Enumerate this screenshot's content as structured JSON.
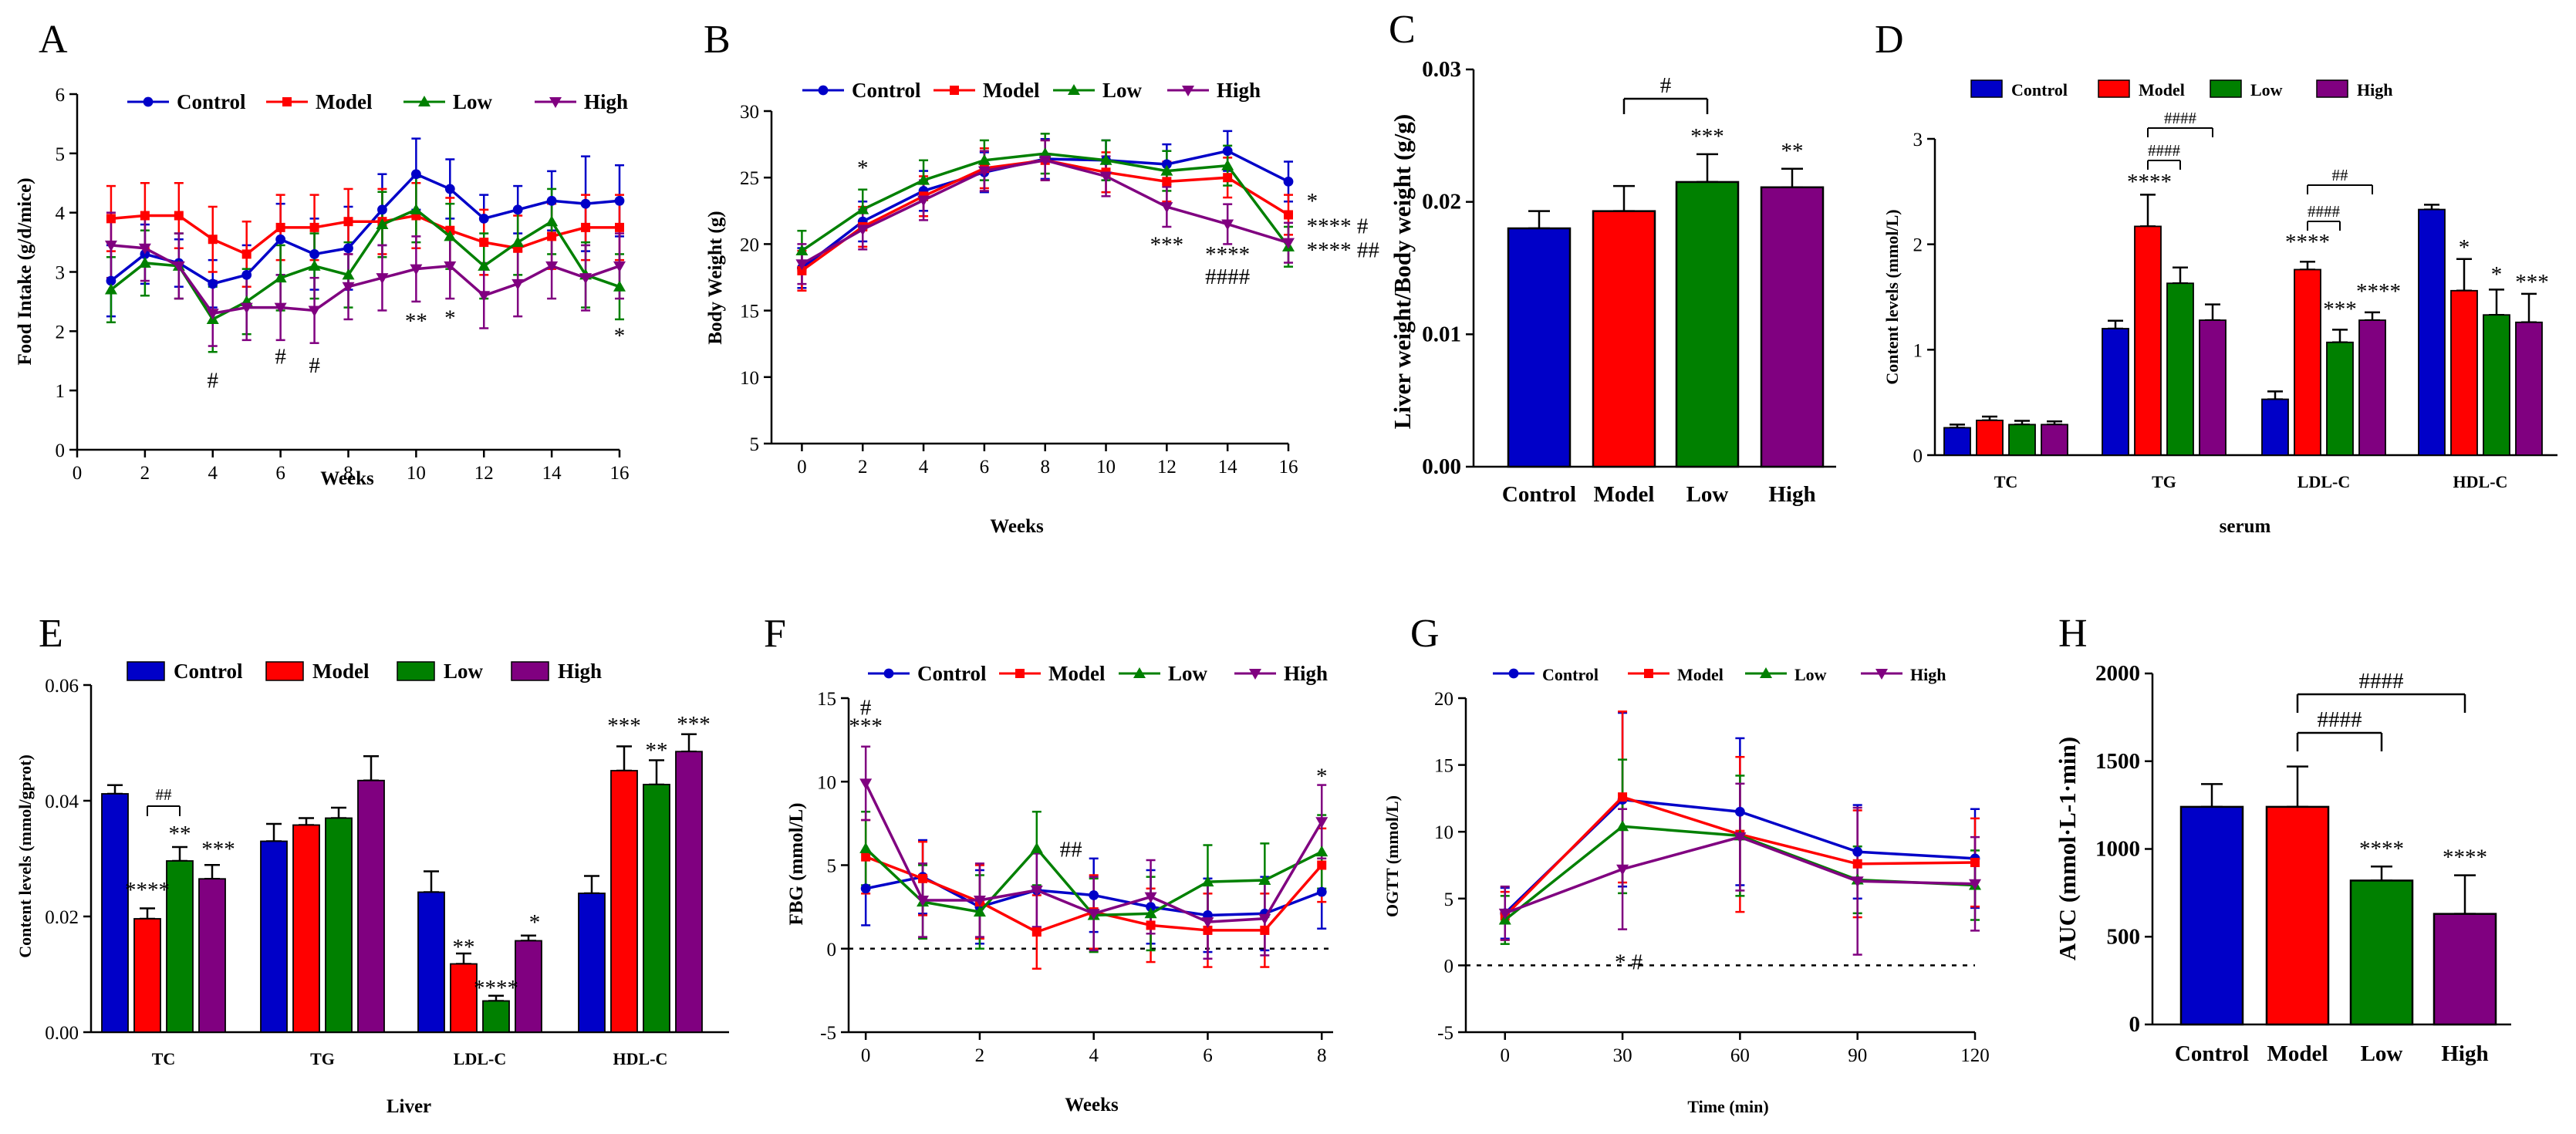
{
  "figure": {
    "labels": [
      "A",
      "B",
      "C",
      "D",
      "E",
      "F",
      "G",
      "H"
    ]
  },
  "colors": {
    "Control": "#0000c8",
    "Model": "#ff0000",
    "Low": "#008000",
    "High": "#800080"
  },
  "chart_data": [
    {
      "id": "A",
      "type": "line",
      "xlabel": "Weeks",
      "ylabel": "Food Intake (g/d/mice)",
      "xlim": [
        0,
        16
      ],
      "ylim": [
        0,
        6
      ],
      "xticks": [
        0,
        2,
        4,
        6,
        8,
        10,
        12,
        14,
        16
      ],
      "yticks": [
        0,
        1,
        2,
        3,
        4,
        5,
        6
      ],
      "legend": [
        "Control",
        "Model",
        "Low",
        "High"
      ],
      "x": [
        1,
        2,
        3,
        4,
        5,
        6,
        7,
        8,
        9,
        10,
        11,
        12,
        13,
        14,
        15,
        16
      ],
      "series": [
        {
          "name": "Control",
          "values": [
            2.85,
            3.3,
            3.15,
            2.8,
            2.95,
            3.55,
            3.3,
            3.4,
            4.05,
            4.65,
            4.4,
            3.9,
            4.05,
            4.2,
            4.15,
            4.2
          ],
          "err": [
            0.6,
            0.5,
            0.4,
            0.4,
            0.5,
            0.6,
            0.6,
            0.7,
            0.6,
            0.6,
            0.5,
            0.4,
            0.4,
            0.5,
            0.8,
            0.6
          ]
        },
        {
          "name": "Model",
          "values": [
            3.9,
            3.95,
            3.95,
            3.55,
            3.3,
            3.75,
            3.75,
            3.85,
            3.85,
            3.95,
            3.7,
            3.5,
            3.4,
            3.6,
            3.75,
            3.75
          ]
        },
        {
          "name": "Low",
          "values": [
            2.7,
            3.15,
            3.1,
            2.2,
            2.5,
            2.9,
            3.1,
            2.95,
            3.8,
            4.05,
            3.6,
            3.1,
            3.5,
            3.85,
            2.95,
            2.75
          ]
        },
        {
          "name": "High",
          "values": [
            3.45,
            3.4,
            3.1,
            2.3,
            2.4,
            2.4,
            2.35,
            2.75,
            2.9,
            3.05,
            3.1,
            2.6,
            2.8,
            3.1,
            2.9,
            3.1
          ]
        }
      ],
      "annotations": [
        {
          "x": 4,
          "y": 1.05,
          "text": "#"
        },
        {
          "x": 6,
          "y": 1.45,
          "text": "#"
        },
        {
          "x": 7,
          "y": 1.3,
          "text": "#"
        },
        {
          "x": 10,
          "y": 2.05,
          "text": "**"
        },
        {
          "x": 11,
          "y": 2.1,
          "text": "*"
        },
        {
          "x": 16,
          "y": 1.8,
          "text": "*"
        }
      ]
    },
    {
      "id": "B",
      "type": "line",
      "xlabel": "Weeks",
      "ylabel": "Body Weight (g)",
      "xlim": [
        -1,
        16
      ],
      "ylim": [
        5,
        30
      ],
      "xticks": [
        0,
        2,
        4,
        6,
        8,
        10,
        12,
        14,
        16
      ],
      "yticks": [
        5,
        10,
        15,
        20,
        25,
        30
      ],
      "legend": [
        "Control",
        "Model",
        "Low",
        "High"
      ],
      "x": [
        0,
        2,
        4,
        6,
        8,
        10,
        12,
        14,
        16
      ],
      "series": [
        {
          "name": "Control",
          "values": [
            18.2,
            21.7,
            24.0,
            25.4,
            26.4,
            26.3,
            26.0,
            27.0,
            24.7
          ]
        },
        {
          "name": "Model",
          "values": [
            18.0,
            21.3,
            23.6,
            25.7,
            26.3,
            25.4,
            24.7,
            25.0,
            22.2
          ]
        },
        {
          "name": "Low",
          "values": [
            19.5,
            22.6,
            24.8,
            26.3,
            26.8,
            26.3,
            25.5,
            25.9,
            19.8
          ]
        },
        {
          "name": "High",
          "values": [
            18.5,
            21.1,
            23.3,
            25.5,
            26.3,
            25.1,
            22.8,
            21.5,
            20.1
          ]
        }
      ],
      "annotations": [
        {
          "x": 2,
          "y": 25.2,
          "text": "*"
        },
        {
          "x": 16.6,
          "y": 22.7,
          "text": "*"
        },
        {
          "x": 16.6,
          "y": 20.8,
          "text": "**** #"
        },
        {
          "x": 16.6,
          "y": 19.0,
          "text": "**** ##"
        },
        {
          "x": 12,
          "y": 19.4,
          "text": "***"
        },
        {
          "x": 14,
          "y": 18.7,
          "text": "****"
        },
        {
          "x": 14,
          "y": 17.0,
          "text": "####"
        }
      ]
    },
    {
      "id": "C",
      "type": "bar",
      "ylabel": "Liver weight/Body weight (g/g)",
      "categories": [
        "Control",
        "Model",
        "Low",
        "High"
      ],
      "values": [
        0.018,
        0.0193,
        0.0215,
        0.0211
      ],
      "err": [
        0.0013,
        0.0019,
        0.0021,
        0.0014
      ],
      "ylim": [
        0,
        0.03
      ],
      "yticks": [
        "0.00",
        "0.01",
        "0.02",
        "0.03"
      ],
      "annotations": [
        {
          "cat": "Low",
          "text": "***"
        },
        {
          "cat": "High",
          "text": "**"
        },
        {
          "from": "Model",
          "to": "Low",
          "text": "#"
        }
      ]
    },
    {
      "id": "D",
      "type": "bar",
      "xlabel": "serum",
      "ylabel": "Content levels (mmol/L)",
      "categories": [
        "TC",
        "TG",
        "LDL-C",
        "HDL-C"
      ],
      "series": [
        {
          "name": "Control",
          "values": [
            0.26,
            1.2,
            0.53,
            2.33
          ]
        },
        {
          "name": "Model",
          "values": [
            0.33,
            2.17,
            1.76,
            1.56
          ]
        },
        {
          "name": "Low",
          "values": [
            0.29,
            1.63,
            1.07,
            1.33
          ]
        },
        {
          "name": "High",
          "values": [
            0.29,
            1.28,
            1.28,
            1.26
          ]
        }
      ],
      "ylim": [
        0,
        3
      ],
      "yticks": [
        0,
        1,
        2,
        3
      ],
      "annotations": [
        {
          "text": "****"
        },
        {
          "text": "****"
        },
        {
          "text": "***"
        },
        {
          "text": "****"
        },
        {
          "text": "*"
        },
        {
          "text": "*"
        },
        {
          "text": "***"
        },
        {
          "text": "####"
        },
        {
          "text": "####"
        },
        {
          "text": "####"
        },
        {
          "text": "##"
        }
      ]
    },
    {
      "id": "E",
      "type": "bar",
      "xlabel": "Liver",
      "ylabel": "Content levels (mmol/gprot)",
      "categories": [
        "TC",
        "TG",
        "LDL-C",
        "HDL-C"
      ],
      "series": [
        {
          "name": "Control",
          "values": [
            0.0412,
            0.033,
            0.0242,
            0.024
          ]
        },
        {
          "name": "Model",
          "values": [
            0.0196,
            0.0358,
            0.0118,
            0.0452
          ]
        },
        {
          "name": "Low",
          "values": [
            0.0296,
            0.037,
            0.0054,
            0.0428
          ]
        },
        {
          "name": "High",
          "values": [
            0.0265,
            0.0435,
            0.0158,
            0.0485
          ]
        }
      ],
      "ylim": [
        0,
        0.06
      ],
      "yticks": [
        "0.00",
        "0.02",
        "0.04",
        "0.06"
      ],
      "annotations": [
        {
          "text": "****"
        },
        {
          "text": "**"
        },
        {
          "text": "***"
        },
        {
          "text": "##"
        },
        {
          "text": "**"
        },
        {
          "text": "****"
        },
        {
          "text": "*"
        },
        {
          "text": "***"
        },
        {
          "text": "**"
        },
        {
          "text": "***"
        }
      ]
    },
    {
      "id": "F",
      "type": "line",
      "xlabel": "Weeks",
      "ylabel": "FBG (mmol/L)",
      "xlim": [
        0,
        8
      ],
      "ylim": [
        -5,
        15
      ],
      "xticks": [
        0,
        2,
        4,
        6,
        8
      ],
      "yticks": [
        -5,
        0,
        5,
        10,
        15
      ],
      "legend": [
        "Control",
        "Model",
        "Low",
        "High"
      ],
      "x": [
        0,
        1,
        2,
        3,
        4,
        5,
        6,
        7,
        8
      ],
      "series": [
        {
          "name": "Control",
          "values": [
            3.6,
            4.3,
            2.5,
            3.5,
            3.2,
            2.5,
            2.0,
            2.1,
            3.4
          ]
        },
        {
          "name": "Model",
          "values": [
            5.5,
            4.2,
            2.8,
            1.0,
            2.2,
            1.4,
            1.1,
            1.1,
            5.0
          ]
        },
        {
          "name": "Low",
          "values": [
            6.0,
            2.8,
            2.2,
            6.0,
            2.0,
            2.1,
            4.0,
            4.1,
            5.8
          ]
        },
        {
          "name": "High",
          "values": [
            9.9,
            2.9,
            2.9,
            3.5,
            2.1,
            3.1,
            1.6,
            1.8,
            7.6
          ]
        }
      ],
      "annotations": [
        {
          "x": 0,
          "y": 14.0,
          "text": "#"
        },
        {
          "x": 0,
          "y": 12.9,
          "text": "***"
        },
        {
          "x": 3.6,
          "y": 5.5,
          "text": "##"
        },
        {
          "x": 8,
          "y": 9.9,
          "text": "*"
        }
      ]
    },
    {
      "id": "G",
      "type": "line",
      "xlabel": "Time (min)",
      "ylabel": "OGTT (mmol/L)",
      "xlim": [
        -10,
        120
      ],
      "ylim": [
        -5,
        20
      ],
      "xticks": [
        0,
        30,
        60,
        90,
        120
      ],
      "yticks": [
        -5,
        0,
        5,
        10,
        15,
        20
      ],
      "legend": [
        "Control",
        "Model",
        "Low",
        "High"
      ],
      "x": [
        0,
        30,
        60,
        90,
        120
      ],
      "series": [
        {
          "name": "Control",
          "values": [
            3.9,
            12.4,
            11.5,
            8.5,
            8.0
          ]
        },
        {
          "name": "Model",
          "values": [
            3.7,
            12.6,
            9.8,
            7.6,
            7.7
          ]
        },
        {
          "name": "Low",
          "values": [
            3.4,
            10.4,
            9.7,
            6.4,
            6.0
          ]
        },
        {
          "name": "High",
          "values": [
            3.9,
            7.2,
            9.6,
            6.3,
            6.1
          ]
        }
      ],
      "annotations": [
        {
          "x": 30,
          "y": 0.5,
          "text": "* #"
        }
      ]
    },
    {
      "id": "H",
      "type": "bar",
      "ylabel": "AUC (mmol·L-1·min)",
      "categories": [
        "Control",
        "Model",
        "Low",
        "High"
      ],
      "values": [
        1240,
        1240,
        820,
        630
      ],
      "err": [
        130,
        230,
        80,
        220
      ],
      "ylim": [
        0,
        2000
      ],
      "yticks": [
        0,
        500,
        1000,
        1500,
        2000
      ],
      "annotations": [
        {
          "cat": "Low",
          "text": "****"
        },
        {
          "cat": "High",
          "text": "****"
        },
        {
          "from": "Model",
          "to": "Low",
          "text": "####"
        },
        {
          "from": "Model",
          "to": "High",
          "text": "####"
        }
      ]
    }
  ]
}
